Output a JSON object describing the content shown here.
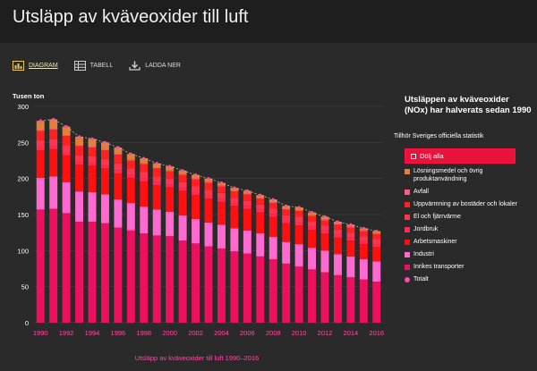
{
  "page": {
    "title": "Utsläpp av kväveoxider till luft"
  },
  "toolbar": {
    "diagram_label": "DIAGRAM",
    "tabell_label": "TABELL",
    "ladda_label": "LADDA NER"
  },
  "legend": {
    "title": "Utsläppen av kväveoxider (NOx) har halverats sedan 1990",
    "note": "Tillhör Sveriges officiella statistik",
    "hide_all": "Dölj alla",
    "items": [
      {
        "label": "Lösningsmedel och övrig produktanvändning",
        "color": "#e0803a"
      },
      {
        "label": "Avfall",
        "color": "#ff5a8a"
      },
      {
        "label": "Uppvärmning av bostäder och lokaler",
        "color": "#ff2020"
      },
      {
        "label": "El och fjärrvärme",
        "color": "#ff3550"
      },
      {
        "label": "Jordbruk",
        "color": "#ff2a55"
      },
      {
        "label": "Arbetsmaskiner",
        "color": "#ff1010"
      },
      {
        "label": "Industri",
        "color": "#ff6ad0"
      },
      {
        "label": "Inrikes transporter",
        "color": "#ee1060"
      },
      {
        "label": "Totalt",
        "color": "#ff4aa8"
      }
    ]
  },
  "footer": {
    "title": "Utsläpp av kväveoxider till luft 1990–2016"
  },
  "chart_data": {
    "type": "bar",
    "stacked": true,
    "ylabel": "Tusen ton",
    "ylim": [
      0,
      300
    ],
    "yticks": [
      0,
      50,
      100,
      150,
      200,
      250,
      300
    ],
    "categories": [
      "1990",
      "1991",
      "1992",
      "1993",
      "1994",
      "1995",
      "1996",
      "1997",
      "1998",
      "1999",
      "2000",
      "2001",
      "2002",
      "2003",
      "2004",
      "2005",
      "2006",
      "2007",
      "2008",
      "2009",
      "2010",
      "2011",
      "2012",
      "2013",
      "2014",
      "2015",
      "2016"
    ],
    "xtick_labels": [
      "1990",
      "1992",
      "1994",
      "1996",
      "1998",
      "2000",
      "2002",
      "2004",
      "2006",
      "2008",
      "2010",
      "2012",
      "2014",
      "2016"
    ],
    "series": [
      {
        "name": "Inrikes transporter",
        "color": "#ee1060",
        "values": [
          157,
          158,
          152,
          140,
          140,
          138,
          132,
          128,
          124,
          121,
          120,
          114,
          110,
          106,
          103,
          99,
          96,
          92,
          88,
          82,
          78,
          74,
          70,
          66,
          63,
          60,
          57
        ]
      },
      {
        "name": "Industri",
        "color": "#ff6ad0",
        "values": [
          44,
          45,
          43,
          42,
          41,
          40,
          39,
          38,
          37,
          36,
          34,
          35,
          34,
          33,
          33,
          32,
          32,
          32,
          31,
          30,
          31,
          30,
          30,
          29,
          29,
          28,
          28
        ]
      },
      {
        "name": "Arbetsmaskiner",
        "color": "#ff1010",
        "values": [
          38,
          38,
          37,
          37,
          37,
          36,
          36,
          35,
          35,
          34,
          34,
          34,
          33,
          33,
          32,
          31,
          30,
          29,
          28,
          26,
          26,
          25,
          24,
          23,
          22,
          21,
          20
        ]
      },
      {
        "name": "Jordbruk",
        "color": "#ff2a55",
        "values": [
          4,
          4,
          4,
          4,
          4,
          4,
          4,
          4,
          4,
          4,
          4,
          4,
          4,
          4,
          4,
          4,
          4,
          4,
          4,
          4,
          4,
          4,
          4,
          4,
          4,
          4,
          4
        ]
      },
      {
        "name": "El och fjärrvärme",
        "color": "#ff3550",
        "values": [
          10,
          10,
          10,
          9,
          9,
          9,
          10,
          9,
          9,
          8,
          8,
          8,
          8,
          8,
          8,
          7,
          7,
          7,
          7,
          7,
          8,
          7,
          7,
          7,
          7,
          7,
          7
        ]
      },
      {
        "name": "Uppvärmning av bostäder och lokaler",
        "color": "#ff2020",
        "values": [
          13,
          13,
          13,
          13,
          12,
          12,
          12,
          11,
          11,
          11,
          10,
          10,
          10,
          10,
          9,
          9,
          9,
          8,
          8,
          8,
          8,
          8,
          7,
          7,
          7,
          7,
          7
        ]
      },
      {
        "name": "Avfall",
        "color": "#ff5a8a",
        "values": [
          1,
          1,
          1,
          1,
          1,
          1,
          1,
          1,
          1,
          1,
          1,
          1,
          1,
          1,
          1,
          1,
          1,
          1,
          1,
          1,
          1,
          1,
          1,
          1,
          1,
          1,
          1
        ]
      },
      {
        "name": "Lösningsmedel och övrig produktanvändning",
        "color": "#e0803a",
        "values": [
          13,
          13,
          12,
          12,
          11,
          10,
          9,
          8,
          7,
          6,
          6,
          5,
          5,
          5,
          4,
          4,
          4,
          4,
          4,
          4,
          4,
          4,
          4,
          3,
          3,
          3,
          3
        ]
      }
    ],
    "total": {
      "name": "Totalt",
      "color": "#ff4aa8",
      "values": [
        280,
        282,
        272,
        258,
        255,
        250,
        243,
        234,
        228,
        221,
        217,
        211,
        205,
        200,
        194,
        187,
        183,
        177,
        171,
        162,
        160,
        153,
        147,
        140,
        136,
        131,
        127
      ]
    }
  }
}
